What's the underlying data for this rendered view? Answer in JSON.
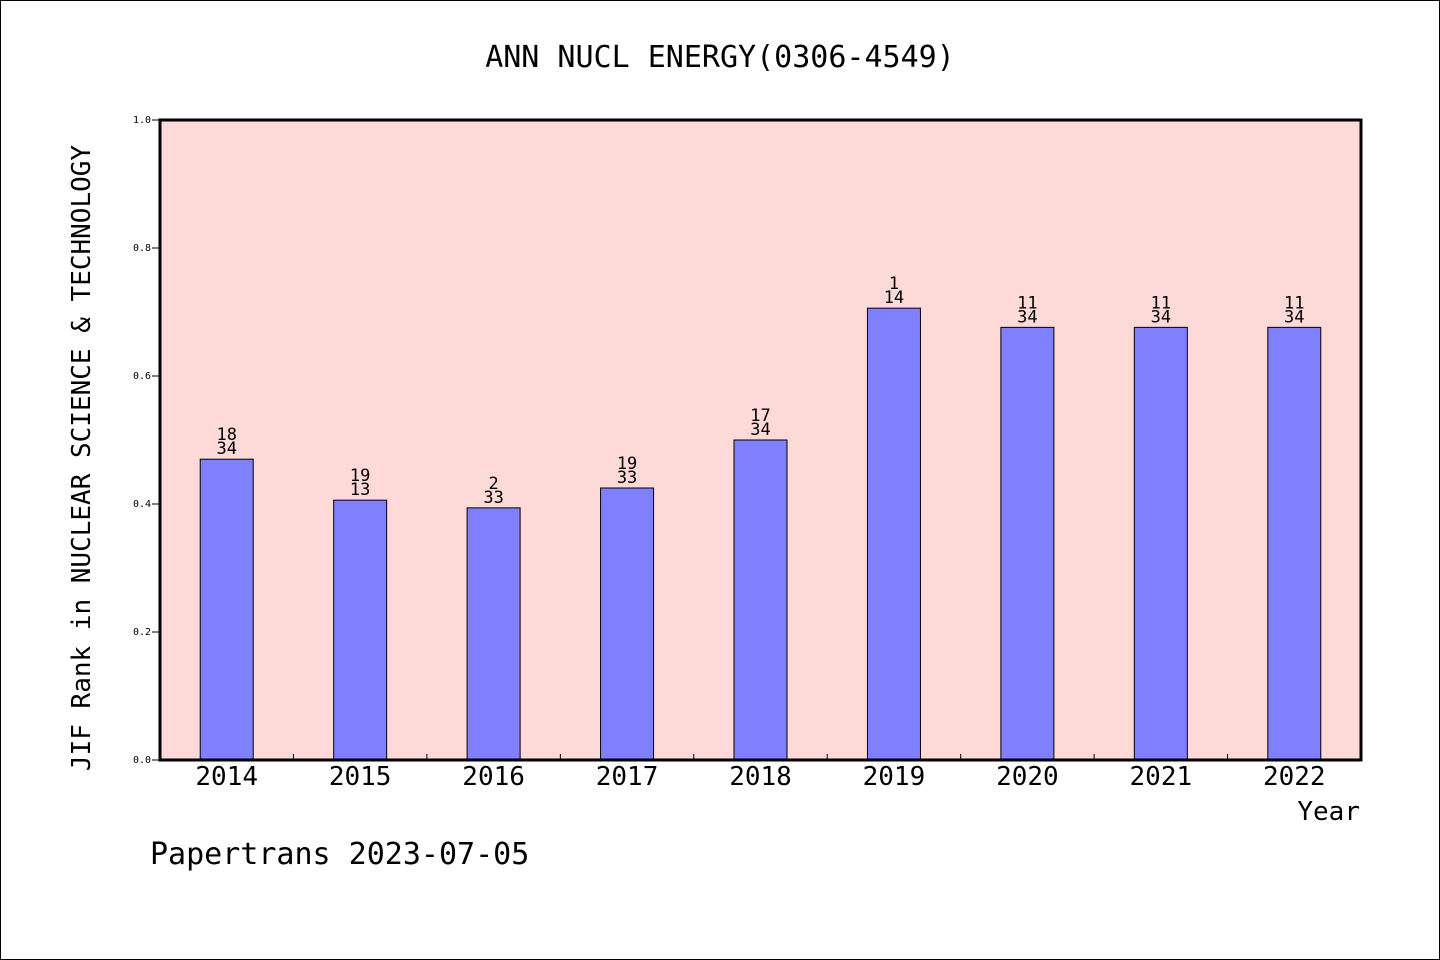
{
  "chart_data": {
    "type": "bar",
    "title": "ANN NUCL ENERGY(0306-4549)",
    "xlabel": "Year",
    "ylabel": "JIF Rank in NUCLEAR SCIENCE & TECHNOLOGY",
    "ylim": [
      0.0,
      1.0
    ],
    "yticks": [
      "0.0",
      "0.2",
      "0.4",
      "0.6",
      "0.8",
      "1.0"
    ],
    "categories": [
      "2014",
      "2015",
      "2016",
      "2017",
      "2018",
      "2019",
      "2020",
      "2021",
      "2022"
    ],
    "values": [
      0.47,
      0.406,
      0.394,
      0.425,
      0.5,
      0.706,
      0.676,
      0.676,
      0.676
    ],
    "labels_top": [
      "18",
      "19",
      "2",
      "19",
      "17",
      "1",
      "11",
      "11",
      "11"
    ],
    "labels_bottom": [
      "34",
      "13",
      "33",
      "33",
      "34",
      "14",
      "34",
      "34",
      "34"
    ],
    "grid": false,
    "colors": {
      "plot_bg": "#fdd9d7",
      "bar": "#8080ff",
      "frame": "#000000"
    }
  },
  "footer": {
    "source": "Papertrans 2023-07-05"
  }
}
